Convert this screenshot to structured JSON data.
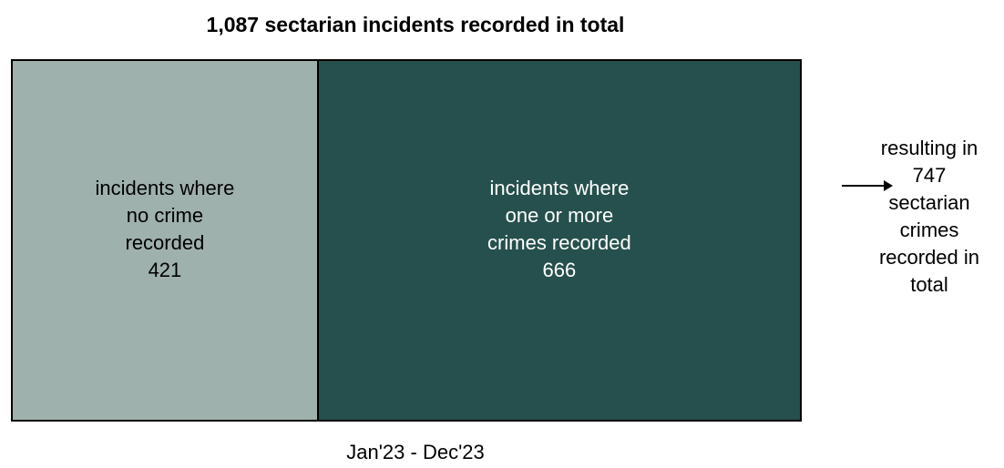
{
  "title": "1,087 sectarian incidents recorded in total",
  "period": "Jan'23 - Dec'23",
  "result_lines": [
    "resulting in",
    "747",
    "sectarian",
    "crimes",
    "recorded in",
    "total"
  ],
  "colors": {
    "no_crime": "#9fb1ad",
    "crime": "#26504d",
    "no_crime_text": "#000000",
    "crime_text": "#ffffff"
  },
  "chart_data": {
    "type": "bar",
    "orientation": "stacked-horizontal-proportional",
    "title": "1,087 sectarian incidents recorded in total",
    "xlabel": "Jan'23 - Dec'23",
    "total": 1087,
    "segments": [
      {
        "label_lines": [
          "incidents where",
          "no crime",
          "recorded"
        ],
        "value": 421
      },
      {
        "label_lines": [
          "incidents where",
          "one or more",
          "crimes recorded"
        ],
        "value": 666
      }
    ],
    "annotation": {
      "lines": [
        "resulting in",
        "747",
        "sectarian",
        "crimes",
        "recorded in",
        "total"
      ],
      "value": 747
    }
  }
}
